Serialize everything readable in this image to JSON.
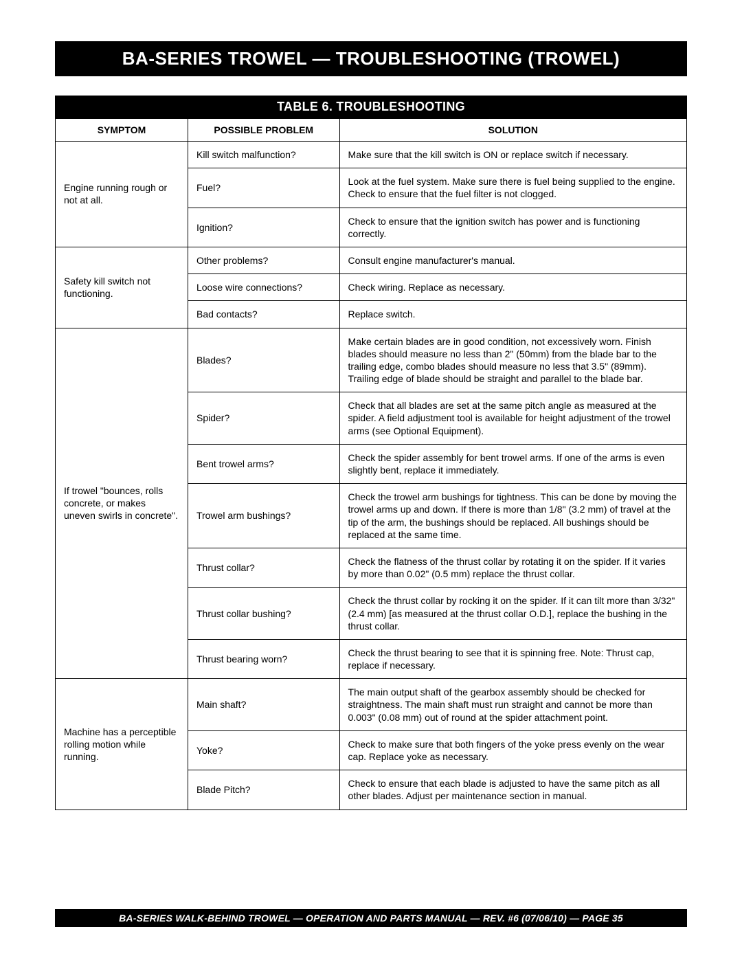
{
  "header": "BA-SERIES TROWEL — TROUBLESHOOTING (TROWEL)",
  "caption": "TABLE 6. TROUBLESHOOTING",
  "columns": {
    "symptom": "SYMPTOM",
    "problem": "POSSIBLE PROBLEM",
    "solution": "SOLUTION"
  },
  "groups": [
    {
      "symptom": "Engine running rough or not at all.",
      "rows": [
        {
          "problem": "Kill switch malfunction?",
          "solution": "Make sure that the kill switch is ON or replace switch if necessary."
        },
        {
          "problem": "Fuel?",
          "solution": "Look at the fuel system. Make sure there is fuel being supplied to the engine. Check to ensure that the fuel filter is not clogged."
        },
        {
          "problem": "Ignition?",
          "solution": "Check to ensure that the ignition switch has power and is functioning correctly."
        }
      ]
    },
    {
      "symptom": "Safety kill switch not functioning.",
      "rows": [
        {
          "problem": "Other problems?",
          "solution": "Consult engine manufacturer's manual."
        },
        {
          "problem": "Loose wire connections?",
          "solution": "Check wiring. Replace as necessary."
        },
        {
          "problem": "Bad contacts?",
          "solution": "Replace switch."
        }
      ]
    },
    {
      "symptom": "If trowel \"bounces, rolls concrete, or makes uneven swirls in concrete\".",
      "rows": [
        {
          "problem": "Blades?",
          "solution": "Make certain blades are in good condition, not excessively worn. Finish blades should measure no less than 2\" (50mm) from the blade bar to the trailing edge, combo blades should measure no less that 3.5\" (89mm). Trailing edge of blade should be straight and parallel to the blade bar."
        },
        {
          "problem": "Spider?",
          "solution": "Check that all blades are set at the same pitch angle as measured at the spider. A field adjustment tool is available for height adjustment of the trowel arms (see Optional Equipment)."
        },
        {
          "problem": "Bent trowel arms?",
          "solution": "Check the spider assembly for bent trowel arms. If one of the arms is even slightly bent, replace it immediately."
        },
        {
          "problem": "Trowel arm bushings?",
          "solution": "Check the trowel arm bushings for tightness. This can be done by moving the trowel arms up and down. If there is more than 1/8\" (3.2 mm) of travel at the tip of the arm, the bushings should be replaced. All bushings should be replaced at the same time."
        },
        {
          "problem": "Thrust collar?",
          "solution": "Check the flatness of the thrust collar by rotating it on the spider. If it varies by more than 0.02\" (0.5 mm) replace the thrust collar."
        },
        {
          "problem": "Thrust collar bushing?",
          "solution": "Check the thrust collar by rocking it on the spider. If it can tilt more than 3/32\" (2.4 mm) [as measured at the thrust collar O.D.], replace the bushing in the thrust collar."
        },
        {
          "problem": "Thrust bearing worn?",
          "solution": "Check the thrust bearing to see that it is spinning free. Note: Thrust cap, replace if necessary."
        }
      ]
    },
    {
      "symptom": "Machine has a perceptible rolling motion while running.",
      "rows": [
        {
          "problem": "Main shaft?",
          "solution": "The main output shaft of the gearbox assembly should be checked for straightness. The main shaft must run straight and cannot be more than 0.003\" (0.08 mm) out of round at the spider attachment point."
        },
        {
          "problem": "Yoke?",
          "solution": "Check to make sure that both fingers of the yoke press evenly on the wear cap. Replace yoke as necessary."
        },
        {
          "problem": "Blade Pitch?",
          "solution": "Check to ensure that each blade is adjusted to have the same pitch as all other blades. Adjust per maintenance section in manual."
        }
      ]
    }
  ],
  "footer": "BA-SERIES WALK-BEHIND TROWEL — OPERATION AND PARTS MANUAL — REV. #6 (07/06/10) — PAGE 35"
}
